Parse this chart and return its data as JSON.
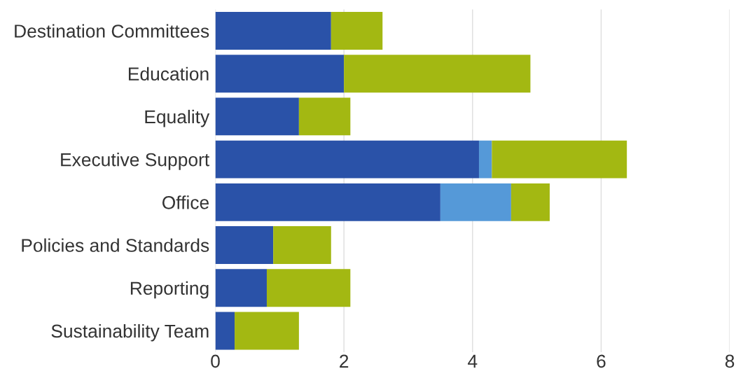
{
  "chart_data": {
    "type": "bar",
    "orientation": "horizontal",
    "stacked": true,
    "categories": [
      "Destination Committees",
      "Education",
      "Equality",
      "Executive Support",
      "Office",
      "Policies and Standards",
      "Reporting",
      "Sustainability Team"
    ],
    "series": [
      {
        "color": "#2a52a8",
        "values": [
          1.8,
          2.0,
          1.3,
          4.1,
          3.5,
          0.9,
          0.8,
          0.3
        ]
      },
      {
        "color": "#5599d8",
        "values": [
          null,
          null,
          null,
          0.2,
          1.1,
          null,
          null,
          null
        ]
      },
      {
        "color": "#a3b812",
        "values": [
          0.8,
          2.9,
          0.8,
          2.1,
          0.6,
          0.9,
          1.3,
          1.0
        ]
      }
    ],
    "xlim": [
      0,
      8
    ],
    "xticks": [
      0,
      2,
      4,
      6,
      8
    ],
    "grid": "x"
  }
}
